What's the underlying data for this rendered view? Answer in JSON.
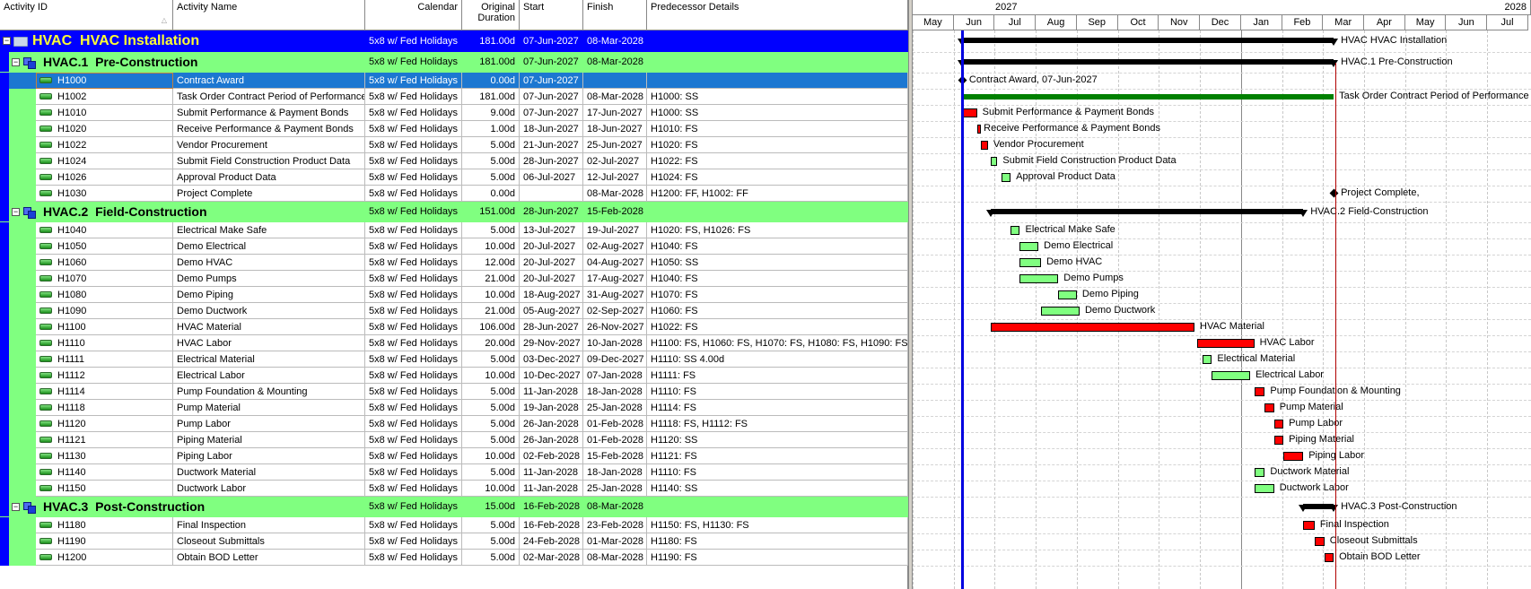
{
  "columns": {
    "activity_id": "Activity ID",
    "activity_name": "Activity Name",
    "calendar": "Calendar",
    "original_duration": "Original Duration",
    "start": "Start",
    "finish": "Finish",
    "predecessor_details": "Predecessor Details"
  },
  "timescale": {
    "years": [
      "2027",
      "2028"
    ],
    "months": [
      "May",
      "Jun",
      "Jul",
      "Aug",
      "Sep",
      "Oct",
      "Nov",
      "Dec",
      "Jan",
      "Feb",
      "Mar",
      "Apr",
      "May",
      "Jun",
      "Jul"
    ],
    "data_date": "07-Jun-2027"
  },
  "colors": {
    "critical": "#ff0000",
    "noncritical": "#80ff80",
    "level_of_effort": "#008000",
    "summary": "#000000",
    "wbs0_bg": "#0000ff",
    "wbs1_bg": "#80ff80",
    "selected": "#1c77d1",
    "data_date_line": "#0000e0"
  },
  "rows": [
    {
      "type": "wbs0",
      "id": "HVAC",
      "name": "HVAC Installation",
      "calendar": "5x8 w/ Fed Holidays",
      "duration": "181.00d",
      "start": "07-Jun-2027",
      "finish": "08-Mar-2028",
      "pred": "",
      "label": "HVAC  HVAC Installation"
    },
    {
      "type": "wbs1",
      "id": "HVAC.1",
      "name": "Pre-Construction",
      "calendar": "5x8 w/ Fed Holidays",
      "duration": "181.00d",
      "start": "07-Jun-2027",
      "finish": "08-Mar-2028",
      "pred": "",
      "label": "HVAC.1  Pre-Construction"
    },
    {
      "type": "milestone",
      "id": "H1000",
      "name": "Contract Award",
      "calendar": "5x8 w/ Fed Holidays",
      "duration": "0.00d",
      "start": "07-Jun-2027",
      "finish": "",
      "pred": "",
      "label": "Contract Award, 07-Jun-2027",
      "selected": true
    },
    {
      "type": "task",
      "bar": "level_of_effort",
      "id": "H1002",
      "name": "Task Order Contract Period of Performance",
      "calendar": "5x8 w/ Fed Holidays",
      "duration": "181.00d",
      "start": "07-Jun-2027",
      "finish": "08-Mar-2028",
      "pred": "H1000: SS",
      "label": "Task Order Contract Period of Performance"
    },
    {
      "type": "task",
      "bar": "critical",
      "id": "H1010",
      "name": "Submit Performance & Payment Bonds",
      "calendar": "5x8 w/ Fed Holidays",
      "duration": "9.00d",
      "start": "07-Jun-2027",
      "finish": "17-Jun-2027",
      "pred": "H1000: SS",
      "label": "Submit Performance & Payment Bonds"
    },
    {
      "type": "task",
      "bar": "critical",
      "id": "H1020",
      "name": "Receive Performance & Payment Bonds",
      "calendar": "5x8 w/ Fed Holidays",
      "duration": "1.00d",
      "start": "18-Jun-2027",
      "finish": "18-Jun-2027",
      "pred": "H1010: FS",
      "label": "Receive Performance & Payment Bonds"
    },
    {
      "type": "task",
      "bar": "critical",
      "id": "H1022",
      "name": "Vendor Procurement",
      "calendar": "5x8 w/ Fed Holidays",
      "duration": "5.00d",
      "start": "21-Jun-2027",
      "finish": "25-Jun-2027",
      "pred": "H1020: FS",
      "label": "Vendor Procurement"
    },
    {
      "type": "task",
      "bar": "noncritical",
      "id": "H1024",
      "name": "Submit Field Construction Product Data",
      "calendar": "5x8 w/ Fed Holidays",
      "duration": "5.00d",
      "start": "28-Jun-2027",
      "finish": "02-Jul-2027",
      "pred": "H1022: FS",
      "label": "Submit Field Construction Product Data"
    },
    {
      "type": "task",
      "bar": "noncritical",
      "id": "H1026",
      "name": "Approval Product Data",
      "calendar": "5x8 w/ Fed Holidays",
      "duration": "5.00d",
      "start": "06-Jul-2027",
      "finish": "12-Jul-2027",
      "pred": "H1024: FS",
      "label": "Approval Product Data"
    },
    {
      "type": "milestone",
      "id": "H1030",
      "name": "Project Complete",
      "calendar": "5x8 w/ Fed Holidays",
      "duration": "0.00d",
      "start": "",
      "finish": "08-Mar-2028",
      "pred": "H1200: FF, H1002: FF",
      "label": "Project Complete,"
    },
    {
      "type": "wbs1",
      "id": "HVAC.2",
      "name": "Field-Construction",
      "calendar": "5x8 w/ Fed Holidays",
      "duration": "151.00d",
      "start": "28-Jun-2027",
      "finish": "15-Feb-2028",
      "pred": "",
      "label": "HVAC.2  Field-Construction"
    },
    {
      "type": "task",
      "bar": "noncritical",
      "id": "H1040",
      "name": "Electrical Make Safe",
      "calendar": "5x8 w/ Fed Holidays",
      "duration": "5.00d",
      "start": "13-Jul-2027",
      "finish": "19-Jul-2027",
      "pred": "H1020: FS, H1026: FS",
      "label": "Electrical Make Safe"
    },
    {
      "type": "task",
      "bar": "noncritical",
      "id": "H1050",
      "name": "Demo Electrical",
      "calendar": "5x8 w/ Fed Holidays",
      "duration": "10.00d",
      "start": "20-Jul-2027",
      "finish": "02-Aug-2027",
      "pred": "H1040: FS",
      "label": "Demo Electrical"
    },
    {
      "type": "task",
      "bar": "noncritical",
      "id": "H1060",
      "name": "Demo HVAC",
      "calendar": "5x8 w/ Fed Holidays",
      "duration": "12.00d",
      "start": "20-Jul-2027",
      "finish": "04-Aug-2027",
      "pred": "H1050: SS",
      "label": "Demo HVAC"
    },
    {
      "type": "task",
      "bar": "noncritical",
      "id": "H1070",
      "name": "Demo Pumps",
      "calendar": "5x8 w/ Fed Holidays",
      "duration": "21.00d",
      "start": "20-Jul-2027",
      "finish": "17-Aug-2027",
      "pred": "H1040: FS",
      "label": "Demo Pumps"
    },
    {
      "type": "task",
      "bar": "noncritical",
      "id": "H1080",
      "name": "Demo Piping",
      "calendar": "5x8 w/ Fed Holidays",
      "duration": "10.00d",
      "start": "18-Aug-2027",
      "finish": "31-Aug-2027",
      "pred": "H1070: FS",
      "label": "Demo Piping"
    },
    {
      "type": "task",
      "bar": "noncritical",
      "id": "H1090",
      "name": "Demo Ductwork",
      "calendar": "5x8 w/ Fed Holidays",
      "duration": "21.00d",
      "start": "05-Aug-2027",
      "finish": "02-Sep-2027",
      "pred": "H1060: FS",
      "label": "Demo Ductwork"
    },
    {
      "type": "task",
      "bar": "critical",
      "id": "H1100",
      "name": "HVAC Material",
      "calendar": "5x8 w/ Fed Holidays",
      "duration": "106.00d",
      "start": "28-Jun-2027",
      "finish": "26-Nov-2027",
      "pred": "H1022: FS",
      "label": "HVAC Material"
    },
    {
      "type": "task",
      "bar": "critical",
      "id": "H1110",
      "name": "HVAC Labor",
      "calendar": "5x8 w/ Fed Holidays",
      "duration": "20.00d",
      "start": "29-Nov-2027",
      "finish": "10-Jan-2028",
      "pred": "H1100: FS, H1060: FS, H1070: FS, H1080: FS, H1090: FS",
      "label": "HVAC Labor"
    },
    {
      "type": "task",
      "bar": "noncritical",
      "id": "H1111",
      "name": "Electrical Material",
      "calendar": "5x8 w/ Fed Holidays",
      "duration": "5.00d",
      "start": "03-Dec-2027",
      "finish": "09-Dec-2027",
      "pred": "H1110: SS 4.00d",
      "label": "Electrical Material"
    },
    {
      "type": "task",
      "bar": "noncritical",
      "id": "H1112",
      "name": "Electrical Labor",
      "calendar": "5x8 w/ Fed Holidays",
      "duration": "10.00d",
      "start": "10-Dec-2027",
      "finish": "07-Jan-2028",
      "pred": "H1111: FS",
      "label": "Electrical Labor"
    },
    {
      "type": "task",
      "bar": "critical",
      "id": "H1114",
      "name": "Pump Foundation & Mounting",
      "calendar": "5x8 w/ Fed Holidays",
      "duration": "5.00d",
      "start": "11-Jan-2028",
      "finish": "18-Jan-2028",
      "pred": "H1110: FS",
      "label": "Pump Foundation & Mounting"
    },
    {
      "type": "task",
      "bar": "critical",
      "id": "H1118",
      "name": "Pump Material",
      "calendar": "5x8 w/ Fed Holidays",
      "duration": "5.00d",
      "start": "19-Jan-2028",
      "finish": "25-Jan-2028",
      "pred": "H1114: FS",
      "label": "Pump Material"
    },
    {
      "type": "task",
      "bar": "critical",
      "id": "H1120",
      "name": "Pump Labor",
      "calendar": "5x8 w/ Fed Holidays",
      "duration": "5.00d",
      "start": "26-Jan-2028",
      "finish": "01-Feb-2028",
      "pred": "H1118: FS, H1112: FS",
      "label": "Pump Labor"
    },
    {
      "type": "task",
      "bar": "critical",
      "id": "H1121",
      "name": "Piping Material",
      "calendar": "5x8 w/ Fed Holidays",
      "duration": "5.00d",
      "start": "26-Jan-2028",
      "finish": "01-Feb-2028",
      "pred": "H1120: SS",
      "label": "Piping Material"
    },
    {
      "type": "task",
      "bar": "critical",
      "id": "H1130",
      "name": "Piping Labor",
      "calendar": "5x8 w/ Fed Holidays",
      "duration": "10.00d",
      "start": "02-Feb-2028",
      "finish": "15-Feb-2028",
      "pred": "H1121: FS",
      "label": "Piping Labor"
    },
    {
      "type": "task",
      "bar": "noncritical",
      "id": "H1140",
      "name": "Ductwork Material",
      "calendar": "5x8 w/ Fed Holidays",
      "duration": "5.00d",
      "start": "11-Jan-2028",
      "finish": "18-Jan-2028",
      "pred": "H1110: FS",
      "label": "Ductwork Material"
    },
    {
      "type": "task",
      "bar": "noncritical",
      "id": "H1150",
      "name": "Ductwork Labor",
      "calendar": "5x8 w/ Fed Holidays",
      "duration": "10.00d",
      "start": "11-Jan-2028",
      "finish": "25-Jan-2028",
      "pred": "H1140: SS",
      "label": "Ductwork Labor"
    },
    {
      "type": "wbs1",
      "id": "HVAC.3",
      "name": "Post-Construction",
      "calendar": "5x8 w/ Fed Holidays",
      "duration": "15.00d",
      "start": "16-Feb-2028",
      "finish": "08-Mar-2028",
      "pred": "",
      "label": "HVAC.3  Post-Construction"
    },
    {
      "type": "task",
      "bar": "critical",
      "id": "H1180",
      "name": "Final Inspection",
      "calendar": "5x8 w/ Fed Holidays",
      "duration": "5.00d",
      "start": "16-Feb-2028",
      "finish": "23-Feb-2028",
      "pred": "H1150: FS, H1130: FS",
      "label": "Final Inspection"
    },
    {
      "type": "task",
      "bar": "critical",
      "id": "H1190",
      "name": "Closeout Submittals",
      "calendar": "5x8 w/ Fed Holidays",
      "duration": "5.00d",
      "start": "24-Feb-2028",
      "finish": "01-Mar-2028",
      "pred": "H1180: FS",
      "label": "Closeout Submittals"
    },
    {
      "type": "task",
      "bar": "critical",
      "id": "H1200",
      "name": "Obtain BOD Letter",
      "calendar": "5x8 w/ Fed Holidays",
      "duration": "5.00d",
      "start": "02-Mar-2028",
      "finish": "08-Mar-2028",
      "pred": "H1190: FS",
      "label": "Obtain BOD Letter"
    }
  ]
}
